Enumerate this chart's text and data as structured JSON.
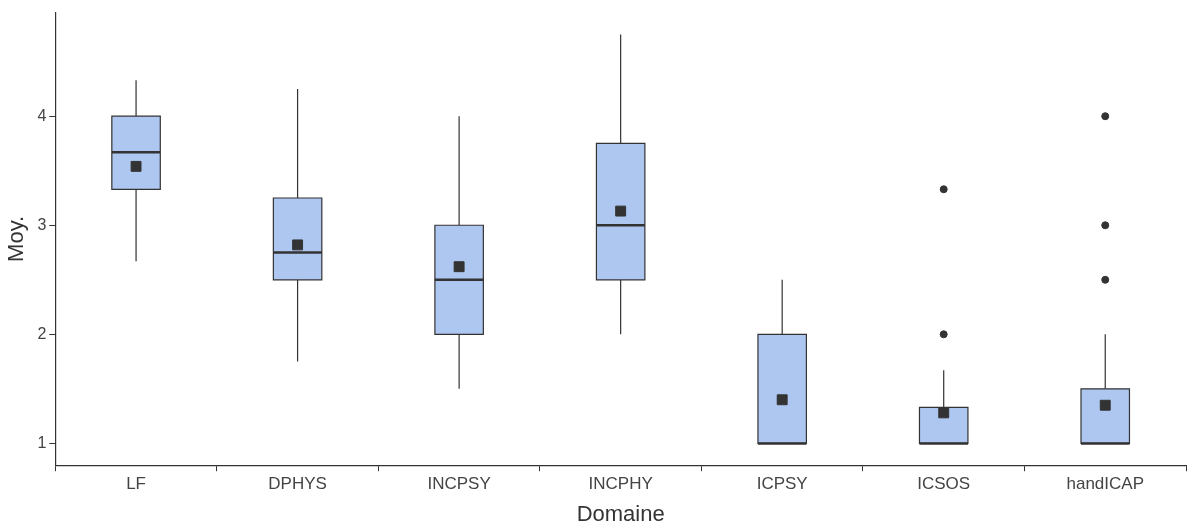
{
  "chart_data": {
    "type": "box",
    "xlabel": "Domaine",
    "ylabel": "Moy.",
    "categories": [
      "LF",
      "DPHYS",
      "INCPSY",
      "INCPHY",
      "ICPSY",
      "ICSOS",
      "handICAP"
    ],
    "color": "#aec7f0",
    "boxes": [
      {
        "low": 2.67,
        "q1": 3.33,
        "median": 3.67,
        "q3": 4.0,
        "high": 4.33,
        "mean": 3.54
      },
      {
        "low": 1.75,
        "q1": 2.5,
        "median": 2.75,
        "q3": 3.25,
        "high": 4.25,
        "mean": 2.82
      },
      {
        "low": 1.5,
        "q1": 2.0,
        "median": 2.5,
        "q3": 3.0,
        "high": 4.0,
        "mean": 2.62
      },
      {
        "low": 2.0,
        "q1": 2.5,
        "median": 3.0,
        "q3": 3.75,
        "high": 4.75,
        "mean": 3.13
      },
      {
        "low": 1.0,
        "q1": 1.0,
        "median": 1.0,
        "q3": 2.0,
        "high": 2.5,
        "mean": 1.4
      },
      {
        "low": 1.0,
        "q1": 1.0,
        "median": 1.0,
        "q3": 1.33,
        "high": 1.67,
        "mean": 1.28,
        "outliers": [
          2.0,
          3.33
        ]
      },
      {
        "low": 1.0,
        "q1": 1.0,
        "median": 1.0,
        "q3": 1.5,
        "high": 2.0,
        "mean": 1.35,
        "outliers": [
          2.5,
          3.0,
          4.0
        ]
      }
    ],
    "ylim": [
      0.8,
      4.95
    ],
    "yticks": [
      1,
      2,
      3,
      4
    ],
    "grid": false,
    "legend": false
  }
}
